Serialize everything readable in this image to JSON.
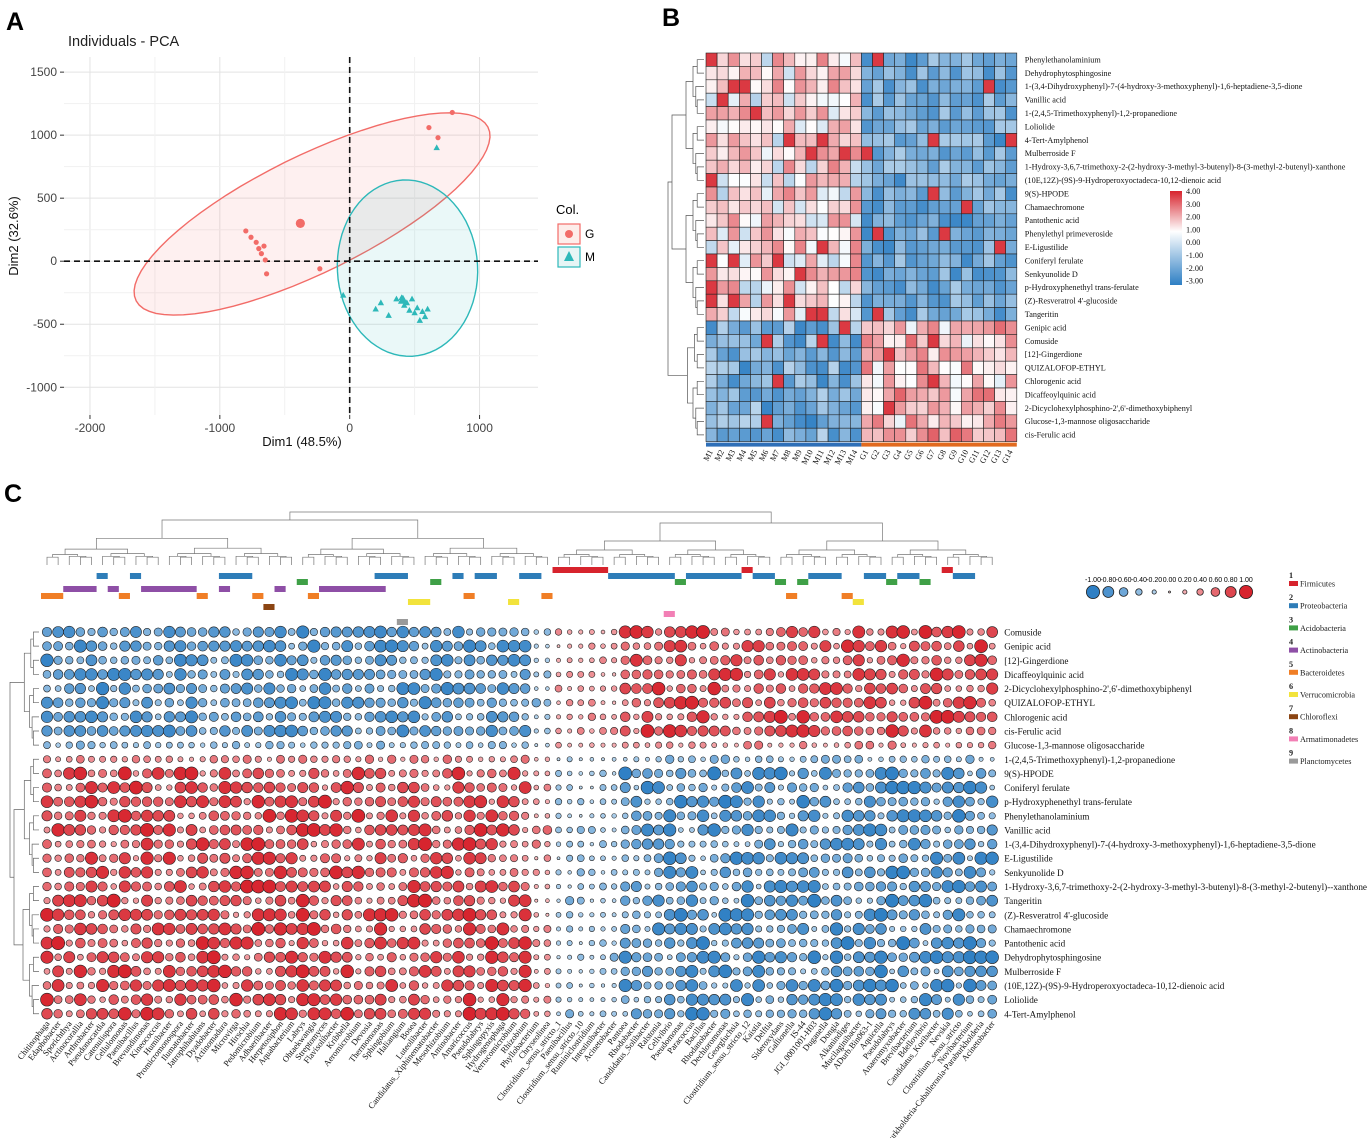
{
  "panels": {
    "a": "A",
    "b": "B",
    "c": "C"
  },
  "colors": {
    "G": "#F26C68",
    "M": "#2DB8B9",
    "red": "#D7232D",
    "blue": "#2E7FC4",
    "white": "#FFFFFF",
    "lightred": "#F7A9AD",
    "lightblue": "#A9CDEB"
  },
  "chart_data": [
    {
      "type": "scatter",
      "title": "Individuals - PCA",
      "xlabel": "Dim1 (48.5%)",
      "ylabel": "Dim2 (32.6%)",
      "xlim": [
        -2200,
        1450
      ],
      "ylim": [
        -1220,
        1620
      ],
      "xticks": [
        "-2000",
        "-1000",
        "0",
        "1000"
      ],
      "yticks": [
        "1500",
        "1000",
        "500",
        "0",
        "-500",
        "-1000"
      ],
      "xtick_values": [
        -2000,
        -1000,
        0,
        1000
      ],
      "ytick_values": [
        1500,
        1000,
        500,
        0,
        -500,
        -1000
      ],
      "legend_title": "Col.",
      "legend": [
        "G",
        "M"
      ],
      "ellipses": [
        {
          "group": "G",
          "cx": -290,
          "cy": 375,
          "rx": 1520,
          "ry": 460,
          "angle_deg": 27
        },
        {
          "group": "M",
          "cx": 445,
          "cy": -55,
          "rx": 540,
          "ry": 700,
          "angle_deg": 3
        }
      ],
      "series": [
        {
          "name": "G",
          "marker": "circle",
          "x": [
            -800,
            -760,
            -720,
            -700,
            -680,
            -650,
            -640,
            -660,
            -230,
            610,
            680,
            790
          ],
          "y": [
            240,
            190,
            150,
            100,
            60,
            10,
            -100,
            120,
            -60,
            1060,
            980,
            1180
          ],
          "centroid": [
            -380,
            300
          ]
        },
        {
          "name": "M",
          "marker": "triangle",
          "x": [
            670,
            -50,
            200,
            240,
            300,
            360,
            400,
            420,
            440,
            460,
            480,
            500,
            520,
            540,
            560,
            580,
            600
          ],
          "y": [
            900,
            -270,
            -380,
            -330,
            -430,
            -300,
            -290,
            -350,
            -330,
            -390,
            -300,
            -410,
            -370,
            -470,
            -400,
            -440,
            -380
          ],
          "centroid": [
            410,
            -310
          ]
        }
      ]
    },
    {
      "type": "heatmap",
      "colorbar_ticks": [
        "4.00",
        "3.00",
        "2.00",
        "1.00",
        "0.00",
        "-1.00",
        "-2.00",
        "-3.00"
      ],
      "columns": [
        "M1",
        "M2",
        "M3",
        "M4",
        "M5",
        "M6",
        "M7",
        "M8",
        "M9",
        "M10",
        "M11",
        "M12",
        "M13",
        "M14",
        "G1",
        "G2",
        "G3",
        "G4",
        "G5",
        "G6",
        "G7",
        "G8",
        "G9",
        "G10",
        "G11",
        "G12",
        "G13",
        "G14"
      ],
      "rows": [
        "Phenylethanolaminium",
        "Dehydrophytosphingosine",
        "1-(3,4-Dihydroxyphenyl)-7-(4-hydroxy-3-methoxyphenyl)-1,6-heptadiene-3,5-dione",
        "Vanillic acid",
        "1-(2,4,5-Trimethoxyphenyl)-1,2-propanedione",
        "Loliolide",
        "4-Tert-Amylphenol",
        "Mulberroside F",
        "1-Hydroxy-3,6,7-trimethoxy-2-(2-hydroxy-3-methyl-3-butenyl)-8-(3-methyl-2-butenyl)-xanthone",
        "(10E,12Z)-(9S)-9-Hydroperoxyoctadeca-10,12-dienoic acid",
        "9(S)-HPODE",
        "Chamaechromone",
        "Pantothenic acid",
        "Phenylethyl primeveroside",
        "E-Ligustilide",
        "Coniferyl ferulate",
        "Senkyunolide D",
        "p-Hydroxyphenethyl trans-ferulate",
        "(Z)-Resveratrol 4'-glucoside",
        "Tangeritin",
        "Genipic acid",
        "Comuside",
        "[12]-Gingerdione",
        "QUIZALOFOP-ETHYL",
        "Chlorogenic acid",
        "Dicaffeoylquinic acid",
        "2-Dicyclohexylphosphino-2',6'-dimethoxybiphenyl",
        "Glucose-1,3-mannose oligosaccharide",
        "cis-Ferulic acid"
      ],
      "group_rows": 20,
      "value_range": [
        -3,
        4
      ]
    },
    {
      "type": "bubble",
      "size_legend": [
        "-1.00",
        "-0.80",
        "-0.60",
        "-0.40",
        "-0.20",
        "0.00",
        "0.20",
        "0.40",
        "0.60",
        "0.80",
        "1.00"
      ],
      "phyla": [
        {
          "num": "1",
          "name": "Firmicutes",
          "color": "#D7232D"
        },
        {
          "num": "2",
          "name": "Proteobacteria",
          "color": "#2E7DB8"
        },
        {
          "num": "3",
          "name": "Acidobacteria",
          "color": "#3FA047"
        },
        {
          "num": "4",
          "name": "Actinobacteria",
          "color": "#8E4FA6"
        },
        {
          "num": "5",
          "name": "Bacteroidetes",
          "color": "#F07E26"
        },
        {
          "num": "6",
          "name": "Verrucomicrobia",
          "color": "#F2E33C"
        },
        {
          "num": "7",
          "name": "Chloroflexi",
          "color": "#8B4513"
        },
        {
          "num": "8",
          "name": "Armatimonadetes",
          "color": "#F27FB5"
        },
        {
          "num": "9",
          "name": "Planctomycetes",
          "color": "#9A9A9A"
        }
      ],
      "rows": [
        "Comuside",
        "Genipic acid",
        "[12]-Gingerdione",
        "Dicaffeoylquinic acid",
        "2-Dicyclohexylphosphino-2',6'-dimethoxybiphenyl",
        "QUIZALOFOP-ETHYL",
        "Chlorogenic acid",
        "cis-Ferulic acid",
        "Glucose-1,3-mannose oligosaccharide",
        "1-(2,4,5-Trimethoxyphenyl)-1,2-propanedione",
        "9(S)-HPODE",
        "Coniferyl ferulate",
        "p-Hydroxyphenethyl trans-ferulate",
        "Phenylethanolaminium",
        "Vanillic acid",
        "1-(3,4-Dihydroxyphenyl)-7-(4-hydroxy-3-methoxyphenyl)-1,6-heptadiene-3,5-dione",
        "E-Ligustilide",
        "Senkyunolide D",
        "1-Hydroxy-3,6,7-trimethoxy-2-(2-hydroxy-3-methyl-3-butenyl)-8-(3-methyl-2-butenyl)--xanthone",
        "Tangeritin",
        "(Z)-Resveratrol 4'-glucoside",
        "Chamaechromone",
        "Pantothenic acid",
        "Dehydrophytosphingosine",
        "Mulberroside F",
        "(10E,12Z)-(9S)-9-Hydroperoxyoctadeca-10,12-dienoic acid",
        "Loliolide",
        "4-Tert-Amylphenol"
      ],
      "top_rows": 9,
      "columns": [
        "Chitinophaga",
        "Edaphobacter",
        "Sporichthya",
        "Actinocorallia",
        "Arthrobacter",
        "Pseudonocardia",
        "Catenulispora",
        "Cellulomonas",
        "Paenibacillus",
        "Brevundimonas",
        "Kineococcus",
        "Humibacter",
        "Promicromonospora",
        "Ilumatobacter",
        "Jatrophihabitans",
        "Dyadobacter",
        "Actinomadura",
        "Microvirga",
        "Hirschia",
        "Pedomicrobium",
        "Adhaeribacter",
        "Herpetosiphon",
        "Aquabacterium",
        "Labrys",
        "Ohtaekwangia",
        "Streptomyces",
        "Flavisolibacter",
        "Kribbella",
        "Aeromicrobium",
        "Devosia",
        "Thermomonas",
        "Sphingobium",
        "Haliangium",
        "Bosea",
        "Luteolibacter",
        "Candidatus_Xiphinematobacter",
        "Mesorhizobium",
        "Aminobacter",
        "Amaricoccus",
        "Pseudolabrys",
        "Sphingopyxis",
        "Hydrogenophaga",
        "Verrucomicrobium",
        "Rhizobium",
        "Phyllobacterium",
        "Chryseolinea",
        "Clostridium_sensu_stricto_1",
        "Paenibacillus",
        "Clostridium_sensu_stricto_10",
        "Ruminiclostridium",
        "Intestinibacter",
        "Acinetobacter",
        "Pantoea",
        "Rhodobacter",
        "Candidatus_Solibacter",
        "Ralstonia",
        "Cellvibrio",
        "Pseudomonas",
        "Paracoccus",
        "Bacillus",
        "Rhodanobacter",
        "Dechloromonas",
        "Georgfuchsia",
        "Clostridium_sensu_stricto_12",
        "Kaistia",
        "Delftia",
        "Sideroxydans",
        "Gallionella",
        "IS-44",
        "JGI_0001001-H03",
        "Duganella",
        "Dongia",
        "Alkanindiges",
        "Mucilaginibacter",
        "ADurb.Bin063-1",
        "Aquicella",
        "Pseudolabrys",
        "Anaeromyxobacter",
        "Brevibacterium",
        "Bdellovibrio",
        "Candidatus_Koribacter",
        "Nevskia",
        "Clostridium_sensu_stricto",
        "Novibacterium",
        "Burkholderia-Caballeronia-Paraburkholderia",
        "Acinetobacter"
      ]
    }
  ]
}
